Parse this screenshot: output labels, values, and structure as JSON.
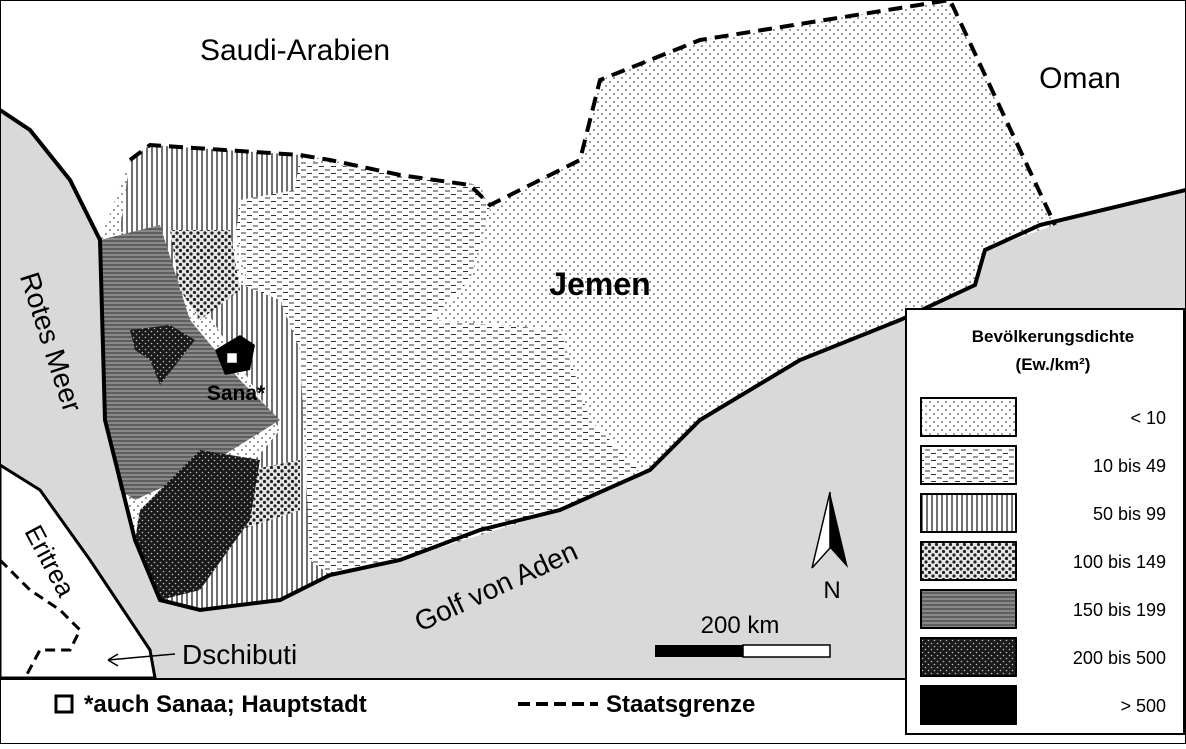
{
  "map": {
    "labels": {
      "saudi_arabia": "Saudi-Arabien",
      "oman": "Oman",
      "yemen": "Jemen",
      "red_sea": "Rotes Meer",
      "eritrea": "Eritrea",
      "djibouti": "Dschibuti",
      "gulf": "Golf von Aden",
      "capital": "Sana*"
    },
    "north": "N",
    "scale": "200 km",
    "legend": {
      "title": "Bevölkerungsdichte",
      "unit": "(Ew./km²)",
      "classes": [
        "< 10",
        "10 bis 49",
        "50 bis 99",
        "100 bis 149",
        "150 bis 199",
        "200 bis 500",
        "> 500"
      ]
    },
    "footer": {
      "capital_note": "*auch Sanaa; Hauptstadt",
      "border": "Staatsgrenze"
    }
  }
}
